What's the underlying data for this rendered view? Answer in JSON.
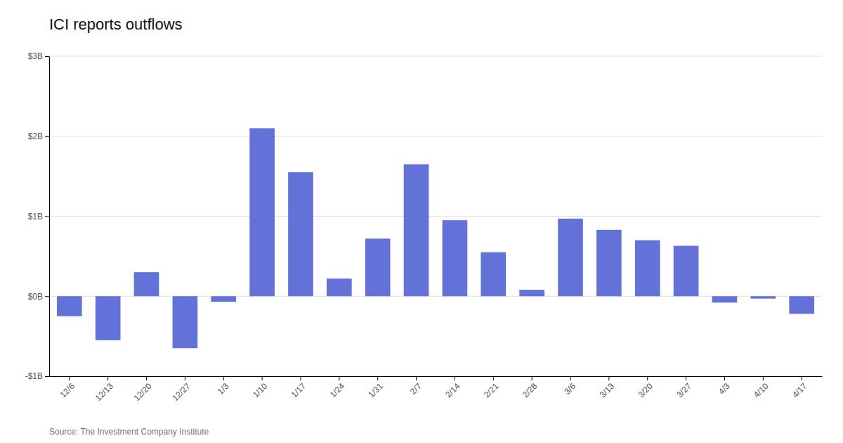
{
  "chart_data": {
    "type": "bar",
    "title": "ICI reports outflows",
    "annotations": [
      "Source: The Investment Company Institute"
    ],
    "categories": [
      "12/6",
      "12/13",
      "12/20",
      "12/27",
      "1/3",
      "1/10",
      "1/17",
      "1/24",
      "1/31",
      "2/7",
      "2/14",
      "2/21",
      "2/28",
      "3/6",
      "3/13",
      "3/20",
      "3/27",
      "4/3",
      "4/10",
      "4/17"
    ],
    "values": [
      -0.25,
      -0.55,
      0.3,
      -0.65,
      -0.07,
      2.1,
      1.55,
      0.22,
      0.72,
      1.65,
      0.95,
      0.55,
      0.08,
      0.97,
      0.83,
      0.7,
      0.63,
      -0.08,
      -0.03,
      -0.22
    ],
    "color": "#6272d9",
    "ylim": [
      -1.0,
      3.0
    ],
    "yticks": [
      {
        "value": -1.0,
        "label": "-$1B"
      },
      {
        "value": 0.0,
        "label": "$0B"
      },
      {
        "value": 1.0,
        "label": "$1B"
      },
      {
        "value": 2.0,
        "label": "$2B"
      },
      {
        "value": 3.0,
        "label": "$3B"
      }
    ],
    "grid": true
  }
}
